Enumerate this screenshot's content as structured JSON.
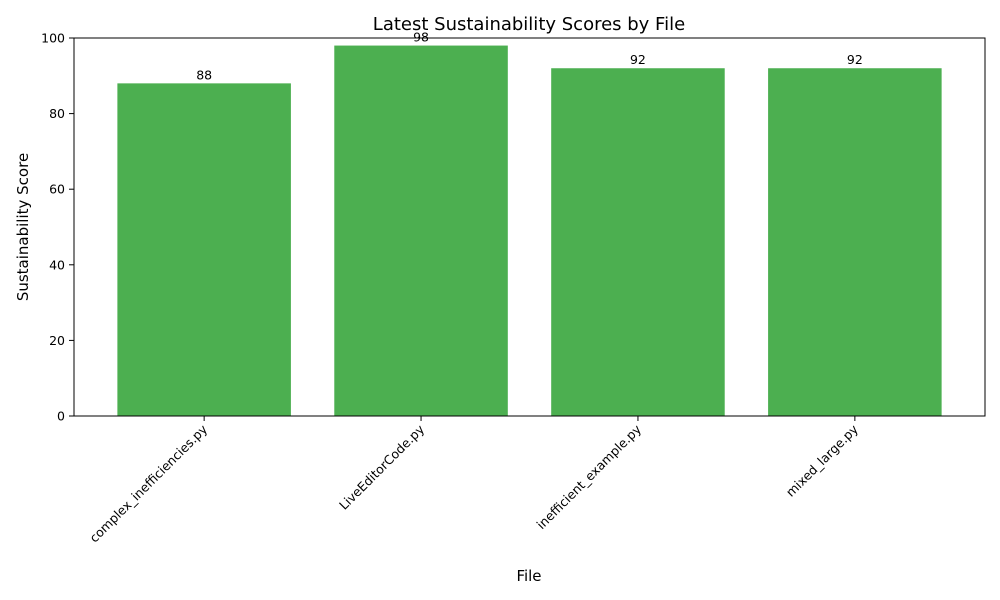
{
  "chart_data": {
    "type": "bar",
    "title": "Latest Sustainability Scores by File",
    "xlabel": "File",
    "ylabel": "Sustainability Score",
    "categories": [
      "complex_inefficiencies.py",
      "LiveEditorCode.py",
      "inefficient_example.py",
      "mixed_large.py"
    ],
    "values": [
      88,
      98,
      92,
      92
    ],
    "ylim": [
      0,
      100
    ],
    "yticks": [
      0,
      20,
      40,
      60,
      80,
      100
    ],
    "bar_color": "#4caf50",
    "grid": false,
    "legend": "none",
    "data_labels": true
  }
}
